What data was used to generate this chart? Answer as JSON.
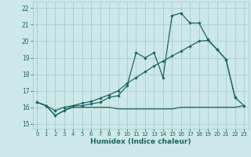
{
  "bg_color": "#cce8e8",
  "grid_color": "#aacccc",
  "line_color": "#1a6666",
  "xlabel": "Humidex (Indice chaleur)",
  "xlim": [
    -0.5,
    23.5
  ],
  "ylim": [
    14.7,
    22.4
  ],
  "yticks": [
    15,
    16,
    17,
    18,
    19,
    20,
    21,
    22
  ],
  "xticks": [
    0,
    1,
    2,
    3,
    4,
    5,
    6,
    7,
    8,
    9,
    10,
    11,
    12,
    13,
    14,
    15,
    16,
    17,
    18,
    19,
    20,
    21,
    22,
    23
  ],
  "line1_x": [
    0,
    1,
    2,
    3,
    4,
    5,
    6,
    7,
    8,
    9,
    10,
    11,
    12,
    13,
    14,
    15,
    16,
    17,
    18,
    19,
    20,
    21,
    22
  ],
  "line1_y": [
    16.3,
    16.1,
    15.5,
    15.8,
    16.1,
    16.1,
    16.2,
    16.3,
    16.6,
    16.7,
    17.3,
    19.3,
    19.0,
    19.3,
    17.8,
    21.55,
    21.7,
    21.1,
    21.1,
    20.1,
    19.5,
    18.9,
    16.6
  ],
  "line2_x": [
    0,
    1,
    2,
    3,
    4,
    5,
    6,
    7,
    8,
    9,
    10,
    11,
    12,
    13,
    14,
    15,
    16,
    17,
    18,
    19,
    20,
    21,
    22,
    23
  ],
  "line2_y": [
    16.3,
    16.1,
    15.8,
    16.0,
    16.1,
    16.25,
    16.35,
    16.55,
    16.75,
    17.0,
    17.45,
    17.8,
    18.15,
    18.5,
    18.8,
    19.1,
    19.4,
    19.7,
    20.0,
    20.05,
    19.5,
    18.9,
    16.6,
    16.1
  ],
  "line3_x": [
    0,
    1,
    2,
    3,
    4,
    5,
    6,
    7,
    8,
    9,
    10,
    11,
    12,
    13,
    14,
    15,
    16,
    17,
    18,
    19,
    20,
    21,
    22,
    23
  ],
  "line3_y": [
    16.3,
    16.1,
    15.5,
    15.8,
    16.0,
    16.0,
    16.0,
    16.0,
    16.0,
    15.9,
    15.9,
    15.9,
    15.9,
    15.9,
    15.9,
    15.9,
    16.0,
    16.0,
    16.0,
    16.0,
    16.0,
    16.0,
    16.0,
    16.1
  ]
}
